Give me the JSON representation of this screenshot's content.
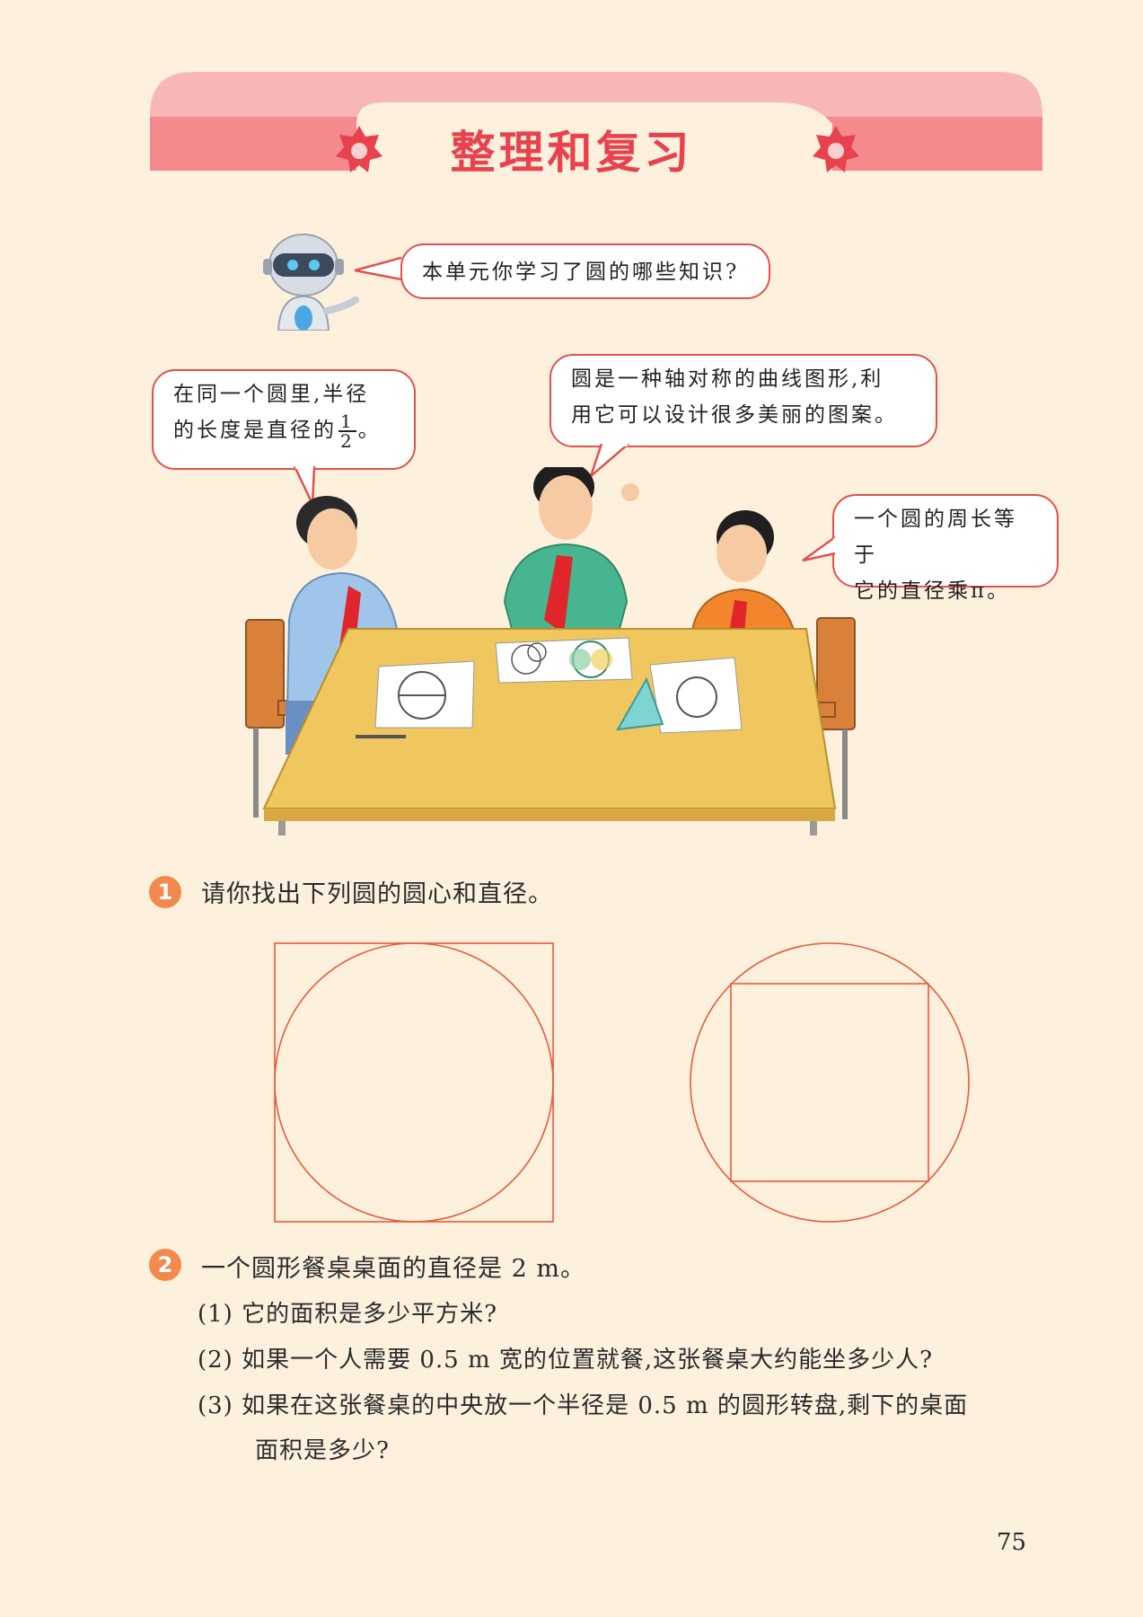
{
  "page": {
    "title": "整理和复习",
    "page_number": "75"
  },
  "robot": {
    "question": "本单元你学习了圆的哪些知识?"
  },
  "bubbles": {
    "left": {
      "line1": "在同一个圆里,半径",
      "line2_before": "的长度是直径的",
      "frac_num": "1",
      "frac_den": "2",
      "line2_after": "。"
    },
    "middle": {
      "line1": "圆是一种轴对称的曲线图形,利",
      "line2": "用它可以设计很多美丽的图案。"
    },
    "right": {
      "line1": "一个圆的周长等于",
      "line2": "它的直径乘π。"
    }
  },
  "problems": {
    "p1": {
      "number": "1",
      "text": "请你找出下列圆的圆心和直径。"
    },
    "p2": {
      "number": "2",
      "text": "一个圆形餐桌桌面的直径是 2 m。",
      "items": [
        {
          "label": "(1)",
          "text": "它的面积是多少平方米?"
        },
        {
          "label": "(2)",
          "text": "如果一个人需要 0.5 m 宽的位置就餐,这张餐桌大约能坐多少人?"
        },
        {
          "label": "(3)",
          "text": "如果在这张餐桌的中央放一个半径是 0.5 m 的圆形转盘,剩下的桌面"
        }
      ],
      "item3_cont": "面积是多少?"
    }
  },
  "colors": {
    "title": "#e8424e",
    "banner": "#f59a9c",
    "banner_light": "#f7b7b7",
    "figure_line": "#e85a3c",
    "badge": "#f28a4e"
  }
}
